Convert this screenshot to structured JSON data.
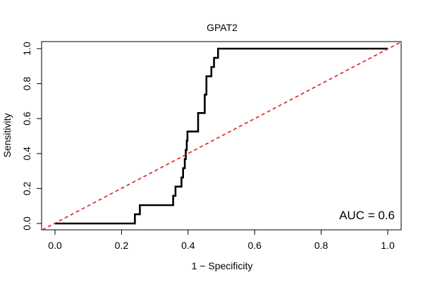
{
  "chart_data": {
    "type": "line",
    "title": "GPAT2",
    "xlabel": "1 − Specificity",
    "ylabel": "Sensitivity",
    "xlim": [
      0.0,
      1.0
    ],
    "ylim": [
      0.0,
      1.0
    ],
    "x_ticks": [
      "0.0",
      "0.2",
      "0.4",
      "0.6",
      "0.8",
      "1.0"
    ],
    "y_ticks": [
      "0.0",
      "0.2",
      "0.4",
      "0.6",
      "0.8",
      "1.0"
    ],
    "grid": false,
    "annotation": "AUC = 0.6",
    "colors": {
      "roc": "#000000",
      "reference": "#e31a1c"
    },
    "series": [
      {
        "style": "step",
        "points": [
          [
            0.0,
            0.0
          ],
          [
            0.24,
            0.0
          ],
          [
            0.24,
            0.053
          ],
          [
            0.255,
            0.053
          ],
          [
            0.255,
            0.105
          ],
          [
            0.355,
            0.105
          ],
          [
            0.355,
            0.158
          ],
          [
            0.362,
            0.158
          ],
          [
            0.362,
            0.211
          ],
          [
            0.38,
            0.211
          ],
          [
            0.38,
            0.263
          ],
          [
            0.385,
            0.263
          ],
          [
            0.385,
            0.316
          ],
          [
            0.39,
            0.316
          ],
          [
            0.39,
            0.368
          ],
          [
            0.393,
            0.368
          ],
          [
            0.393,
            0.421
          ],
          [
            0.396,
            0.421
          ],
          [
            0.396,
            0.474
          ],
          [
            0.398,
            0.474
          ],
          [
            0.398,
            0.526
          ],
          [
            0.43,
            0.526
          ],
          [
            0.43,
            0.632
          ],
          [
            0.45,
            0.632
          ],
          [
            0.45,
            0.737
          ],
          [
            0.455,
            0.737
          ],
          [
            0.455,
            0.842
          ],
          [
            0.47,
            0.842
          ],
          [
            0.47,
            0.895
          ],
          [
            0.478,
            0.895
          ],
          [
            0.478,
            0.947
          ],
          [
            0.49,
            0.947
          ],
          [
            0.49,
            1.0
          ],
          [
            1.0,
            1.0
          ]
        ]
      },
      {
        "style": "dashed",
        "points": [
          [
            0.0,
            0.0
          ],
          [
            1.0,
            1.0
          ]
        ]
      }
    ]
  }
}
